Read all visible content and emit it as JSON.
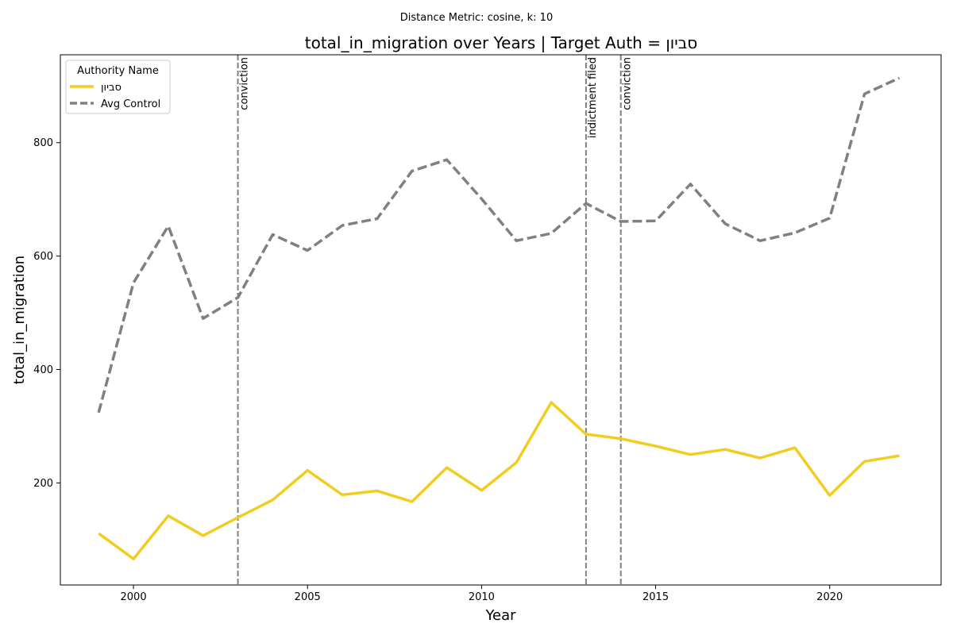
{
  "suptitle": "Distance Metric: cosine, k: 10",
  "chart_data": {
    "type": "line",
    "title": "total_in_migration over Years | Target Auth = סביון",
    "xlabel": "Year",
    "ylabel": "total_in_migration",
    "xlim": [
      1997.9,
      2023.2
    ],
    "ylim": [
      20,
      955
    ],
    "xticks": [
      2000,
      2005,
      2010,
      2015,
      2020
    ],
    "yticks": [
      200,
      400,
      600,
      800
    ],
    "grid": false,
    "legend": {
      "title": "Authority Name",
      "placement": "top-left"
    },
    "x": [
      1999,
      2000,
      2001,
      2002,
      2003,
      2004,
      2005,
      2006,
      2007,
      2008,
      2009,
      2010,
      2011,
      2012,
      2013,
      2014,
      2015,
      2016,
      2017,
      2018,
      2019,
      2020,
      2021,
      2022
    ],
    "series": [
      {
        "name": "סביון",
        "color": "#f2cc1f",
        "style": "solid",
        "values": [
          111,
          66,
          142,
          107,
          139,
          170,
          222,
          179,
          186,
          167,
          227,
          187,
          236,
          342,
          286,
          278,
          265,
          250,
          259,
          244,
          262,
          178,
          238,
          248
        ]
      },
      {
        "name": "Avg Control",
        "color": "#808080",
        "style": "dashed",
        "values": [
          324,
          553,
          653,
          490,
          527,
          638,
          610,
          654,
          666,
          750,
          770,
          701,
          627,
          640,
          693,
          661,
          662,
          727,
          657,
          627,
          641,
          667,
          886,
          914
        ]
      }
    ],
    "events": [
      {
        "year": 2003,
        "label": "conviction"
      },
      {
        "year": 2013,
        "label": "indictment filed"
      },
      {
        "year": 2014,
        "label": "conviction"
      }
    ]
  }
}
